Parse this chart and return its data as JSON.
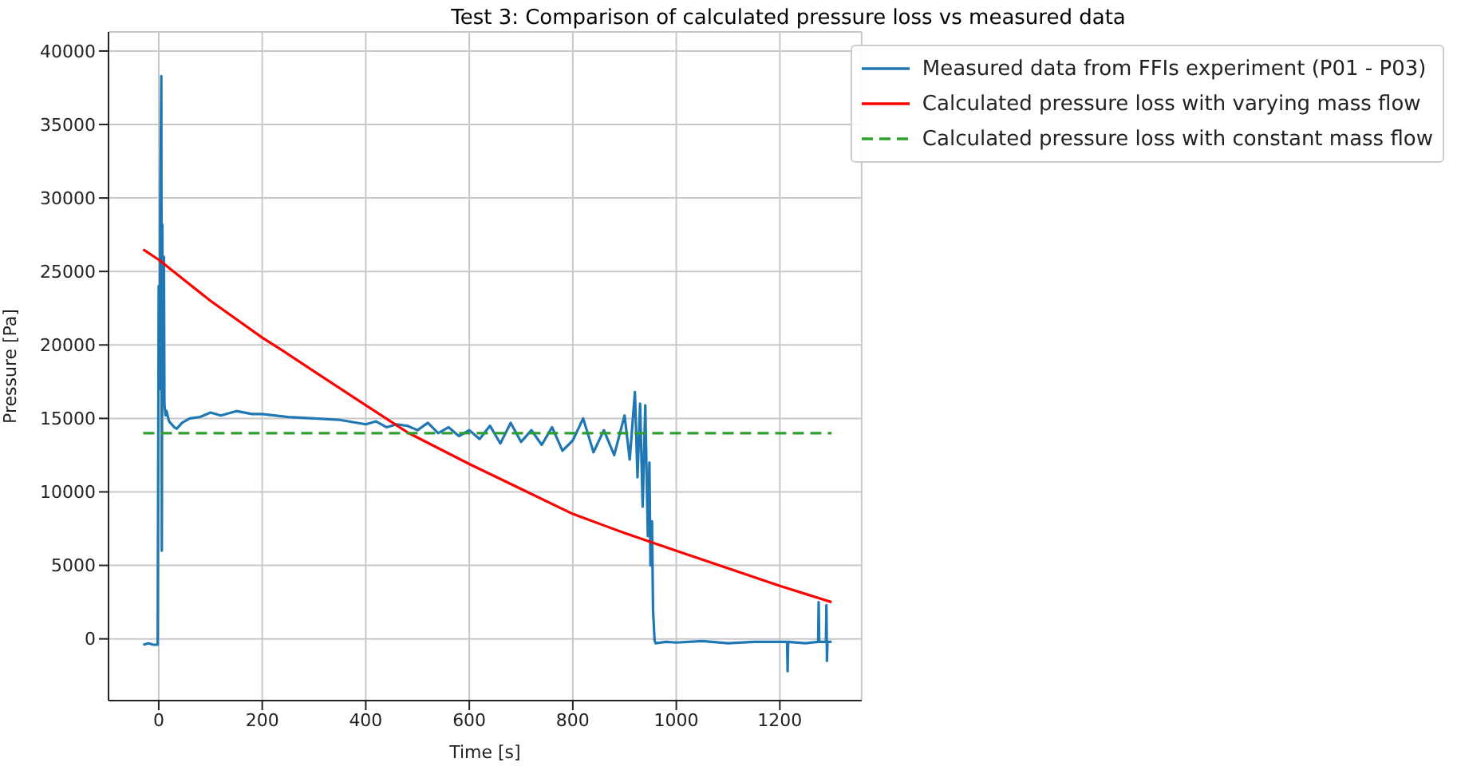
{
  "chart_data": {
    "type": "line",
    "title": "Test 3: Comparison of calculated pressure loss vs measured data",
    "xlabel": "Time [s]",
    "ylabel": "Pressure [Pa]",
    "xlim": [
      -97,
      1358
    ],
    "xticks": [
      0,
      200,
      400,
      600,
      800,
      1000,
      1200
    ],
    "ylim": [
      -4200,
      41300
    ],
    "yticks": [
      0,
      5000,
      10000,
      15000,
      20000,
      25000,
      30000,
      35000,
      40000
    ],
    "grid": true,
    "legend": "top right",
    "series": [
      {
        "name": "Measured data from FFIs experiment (P01 - P03)",
        "color": "#1f77b4",
        "line_style": "solid",
        "x": [
          -30,
          -20,
          -10,
          -2,
          0,
          2,
          3,
          5,
          6,
          7,
          8,
          10,
          11,
          13,
          15,
          20,
          30,
          35,
          45,
          60,
          80,
          100,
          120,
          150,
          180,
          200,
          250,
          300,
          350,
          400,
          420,
          440,
          460,
          480,
          500,
          520,
          540,
          560,
          580,
          600,
          620,
          640,
          660,
          680,
          700,
          720,
          740,
          760,
          780,
          800,
          820,
          840,
          860,
          880,
          900,
          910,
          920,
          925,
          930,
          935,
          940,
          945,
          948,
          950,
          953,
          955,
          958,
          960,
          980,
          1000,
          1050,
          1100,
          1150,
          1200,
          1214,
          1215,
          1216,
          1250,
          1274,
          1275,
          1276,
          1289,
          1290,
          1291,
          1292,
          1300
        ],
        "values": [
          -400,
          -300,
          -400,
          -400,
          24000,
          17000,
          30000,
          38300,
          6000,
          28200,
          16500,
          26000,
          16000,
          15200,
          15500,
          14800,
          14400,
          14300,
          14700,
          15000,
          15100,
          15400,
          15200,
          15500,
          15300,
          15300,
          15100,
          15000,
          14900,
          14600,
          14800,
          14400,
          14600,
          14500,
          14200,
          14700,
          14000,
          14400,
          13800,
          14200,
          13600,
          14500,
          13300,
          14700,
          13400,
          14200,
          13200,
          14400,
          12800,
          13500,
          15000,
          12700,
          14200,
          12500,
          15200,
          12200,
          16800,
          11000,
          16000,
          9000,
          15900,
          7000,
          12000,
          5000,
          8000,
          2000,
          -100,
          -300,
          -200,
          -250,
          -150,
          -300,
          -200,
          -200,
          -200,
          -2200,
          -200,
          -300,
          -200,
          2500,
          -200,
          -200,
          2300,
          -1500,
          -200,
          -200
        ]
      },
      {
        "name": "Calculated pressure loss with varying mass flow",
        "color": "#ff0000",
        "line_style": "solid",
        "x": [
          -30,
          0,
          100,
          200,
          240,
          300,
          400,
          483,
          600,
          700,
          800,
          900,
          1000,
          1100,
          1200,
          1300
        ],
        "values": [
          26500,
          25800,
          23000,
          20500,
          19600,
          18200,
          15900,
          14000,
          11900,
          10200,
          8500,
          7200,
          6000,
          4800,
          3600,
          2500
        ]
      },
      {
        "name": "Calculated pressure loss with constant mass flow",
        "color": "#2ca02c",
        "line_style": "dashed",
        "x": [
          -30,
          1300
        ],
        "values": [
          14000,
          14000
        ]
      }
    ]
  }
}
